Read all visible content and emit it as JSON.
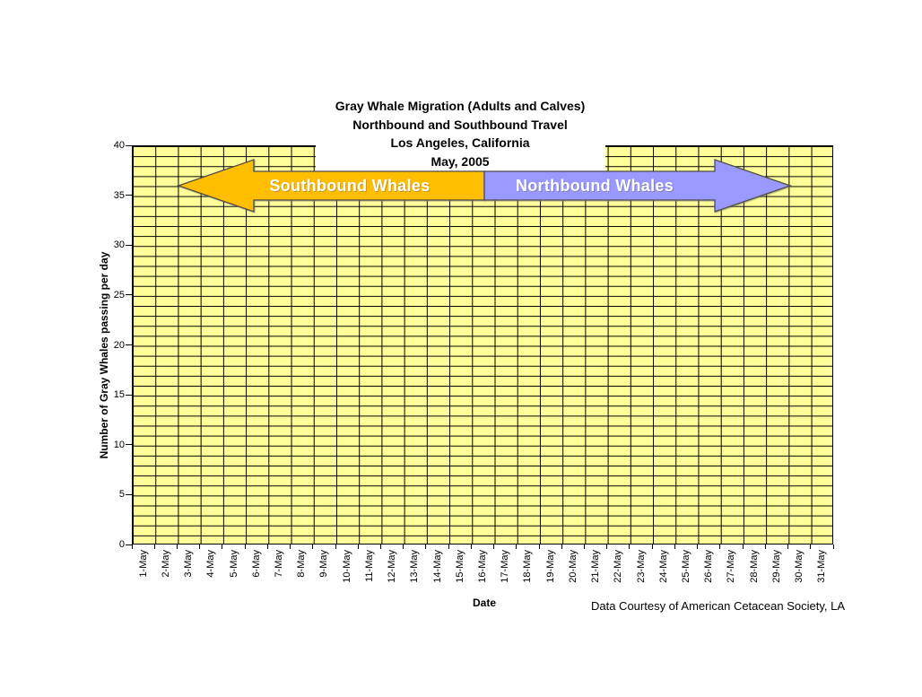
{
  "chart": {
    "title_lines": [
      "Gray Whale Migration (Adults and Calves)",
      "Northbound and Southbound Travel",
      "Los Angeles, California",
      "May, 2005"
    ],
    "y_axis": {
      "title": "Number of Gray Whales passing per day",
      "ticks": [
        "40",
        "35",
        "30",
        "25",
        "20",
        "15",
        "10",
        "5",
        "0"
      ]
    },
    "x_axis": {
      "title": "Date"
    },
    "arrows": {
      "southbound": {
        "label": "Southbound Whales",
        "fill": "#FFBE00"
      },
      "northbound": {
        "label": "Northbound Whales",
        "fill": "#9999FF"
      }
    },
    "footnote": "Data Courtesy of American Cetacean Society, LA",
    "colors": {
      "plot_background": "#FFFF99",
      "gridline": "#000000",
      "arrow_outline": "#4d4d4d",
      "southbound_fill": "#FFBE00",
      "northbound_fill": "#9999FF",
      "text": "#000000"
    }
  },
  "chart_data": {
    "type": "bar",
    "title": "Gray Whale Migration (Adults and Calves) / Northbound and Southbound Travel / Los Angeles, California / May, 2005",
    "xlabel": "Date",
    "ylabel": "Number of Gray Whales passing per day",
    "categories": [
      "1-May",
      "2-May",
      "3-May",
      "4-May",
      "5-May",
      "6-May",
      "7-May",
      "8-May",
      "9-May",
      "10-May",
      "11-May",
      "12-May",
      "13-May",
      "14-May",
      "15-May",
      "16-May",
      "17-May",
      "18-May",
      "19-May",
      "20-May",
      "21-May",
      "22-May",
      "23-May",
      "24-May",
      "25-May",
      "26-May",
      "27-May",
      "28-May",
      "29-May",
      "30-May",
      "31-May"
    ],
    "series": [],
    "ylim": [
      0,
      40
    ],
    "y_major_step": 5,
    "y_minor_step": 1,
    "grid": "on",
    "legend": "none",
    "annotations": [
      {
        "label": "Southbound Whales",
        "shape": "left-arrow",
        "color": "#FFBE00"
      },
      {
        "label": "Northbound Whales",
        "shape": "right-arrow",
        "color": "#9999FF"
      }
    ]
  }
}
